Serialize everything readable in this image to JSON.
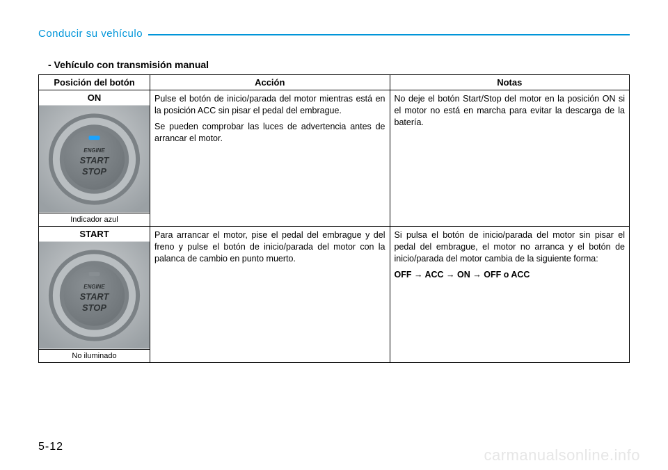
{
  "header": {
    "title": "Conducir su vehículo",
    "accent_color": "#0095d9"
  },
  "subtitle": "- Vehículo con transmisión manual",
  "table": {
    "headers": [
      "Posición del botón",
      "Acción",
      "Notas"
    ],
    "rows": [
      {
        "position_label": "ON",
        "indicator_text": "Indicador azul",
        "button_state": "on",
        "action_paragraphs": [
          "Pulse el botón de inicio/parada del motor mientras está en la posición ACC sin pisar el pedal del embrague.",
          "Se pueden comprobar las luces de advertencia antes de arrancar el motor."
        ],
        "notes_paragraphs": [
          "No deje el botón Start/Stop del motor en la posición ON si el motor no está en marcha para evitar la descarga de la batería."
        ],
        "notes_sequence": null
      },
      {
        "position_label": "START",
        "indicator_text": "No iluminado",
        "button_state": "off",
        "action_paragraphs": [
          "Para arrancar el motor, pise el pedal del embrague y del freno y pulse el botón de inicio/parada del motor con la palanca de cambio en punto muerto."
        ],
        "notes_paragraphs": [
          "Si pulsa el botón de inicio/parada del motor sin pisar el pedal del embrague, el motor no arranca y el botón de inicio/parada del motor cambia de la siguiente forma:"
        ],
        "notes_sequence": "OFF → ACC → ON → OFF o ACC"
      }
    ]
  },
  "button_svg": {
    "on": {
      "bg_gradient": [
        "#cfd2d4",
        "#9aa0a4"
      ],
      "ring_outer": "#7b8185",
      "ring_inner": "#b9bec1",
      "face": "#6e7478",
      "led_color": "#1aa3ff",
      "text_color": "#2e3234",
      "lines": [
        "ENGINE",
        "START",
        "STOP"
      ]
    },
    "off": {
      "bg_gradient": [
        "#cfd2d4",
        "#9aa0a4"
      ],
      "ring_outer": "#7b8185",
      "ring_inner": "#b9bec1",
      "face": "#6e7478",
      "led_color": "#888e92",
      "text_color": "#2e3234",
      "lines": [
        "ENGINE",
        "START",
        "STOP"
      ]
    }
  },
  "page_number": "5-12",
  "watermark": "carmanualsonline.info"
}
